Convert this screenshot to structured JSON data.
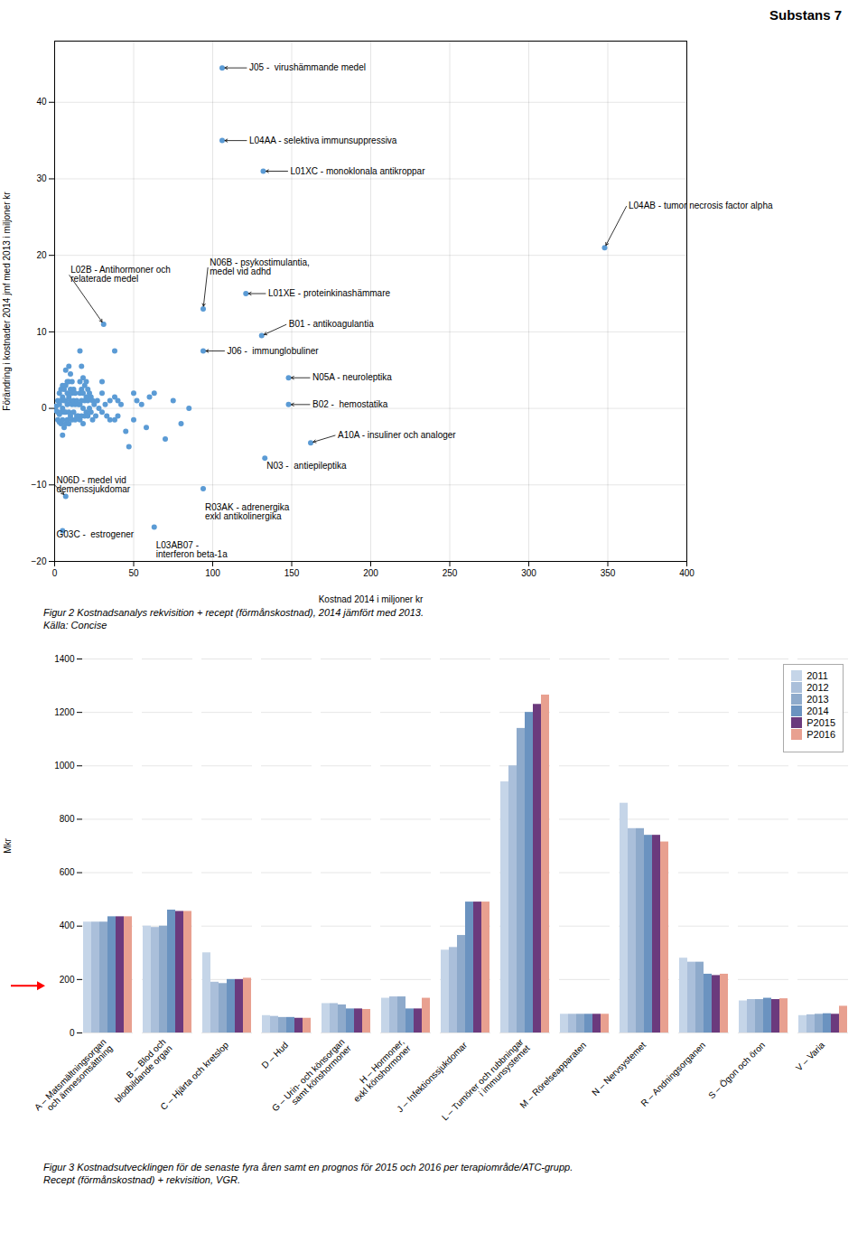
{
  "chart_data": [
    {
      "type": "scatter",
      "title": "Substans 7",
      "xlabel": "Kostnad 2014 i miljoner kr",
      "ylabel": "Förändring i kostnader 2014 jmf med 2013 i miljoner kr",
      "caption": [
        "Figur 2 Kostnadsanalys rekvisition + recept (förmånskostnad), 2014 jämfört med 2013.",
        "Källa: Concise"
      ],
      "color": "#5b9bd5",
      "xlim": [
        0,
        400
      ],
      "ylim": [
        -20,
        48
      ],
      "xticks": [
        0,
        50,
        100,
        150,
        200,
        250,
        300,
        350,
        400
      ],
      "yticks": [
        -20,
        -10,
        0,
        10,
        20,
        30,
        40
      ],
      "grid": true,
      "x": [
        1,
        1,
        2,
        2,
        2,
        3,
        3,
        3,
        3,
        4,
        4,
        4,
        4,
        5,
        5,
        5,
        5,
        5,
        6,
        6,
        6,
        6,
        7,
        7,
        7,
        7,
        7,
        8,
        8,
        8,
        8,
        9,
        9,
        9,
        9,
        9,
        10,
        10,
        10,
        10,
        11,
        11,
        11,
        11,
        12,
        12,
        12,
        13,
        13,
        13,
        14,
        14,
        15,
        15,
        16,
        16,
        16,
        16,
        16,
        17,
        17,
        17,
        17,
        18,
        18,
        18,
        18,
        19,
        19,
        19,
        20,
        20,
        20,
        21,
        21,
        21,
        22,
        22,
        23,
        23,
        24,
        24,
        25,
        26,
        27,
        28,
        30,
        30,
        30,
        32,
        33,
        35,
        35,
        38,
        38,
        38,
        40,
        40,
        42,
        45,
        47,
        50,
        50,
        52,
        55,
        58,
        60,
        63,
        70,
        75,
        80,
        85,
        106,
        106,
        132,
        348,
        94,
        121,
        131,
        94,
        148,
        148,
        162,
        133,
        31,
        94,
        7,
        5,
        63
      ],
      "values": [
        0.3,
        -0.3,
        1,
        -0.5,
        -1.5,
        2,
        0.5,
        -0.8,
        -1.8,
        2.5,
        1,
        -0.5,
        -2,
        3,
        1.5,
        0,
        -1.5,
        -3.5,
        2.5,
        1,
        -0.5,
        -2.5,
        5,
        3,
        1,
        -0.5,
        -2,
        3.5,
        2,
        0.5,
        -1.5,
        5.5,
        3.5,
        1.5,
        -0.5,
        -2,
        4.5,
        2.5,
        1,
        -1,
        3.5,
        2,
        0.5,
        -1.5,
        2.5,
        1,
        -0.5,
        2,
        0.5,
        -1.5,
        1,
        -1,
        0.5,
        -1,
        7.5,
        3.5,
        2,
        0.5,
        -1.5,
        5.5,
        2.5,
        1,
        -1,
        4,
        2,
        0,
        -2,
        3,
        1,
        -1,
        3.5,
        1.5,
        -0.5,
        2.5,
        1,
        -1,
        2,
        0,
        1.5,
        -0.5,
        1,
        -1.5,
        0.5,
        -1,
        1,
        0,
        3.5,
        2,
        -0.5,
        0.5,
        -1,
        1,
        -1.5,
        7.5,
        1.5,
        -1.5,
        1,
        -1,
        0.5,
        -3,
        -5,
        2,
        -1.5,
        1,
        0.5,
        -2.5,
        1.5,
        2,
        -4,
        1,
        -2,
        0,
        44.5,
        35,
        31,
        21,
        13,
        15,
        9.5,
        7.5,
        4,
        0.5,
        -4.5,
        -6.5,
        11,
        -10.5,
        -11.5,
        -16,
        -15.5
      ],
      "annotations": [
        {
          "text": "J05 -  virushämmande medel",
          "x": 106,
          "y": 44.5,
          "label_x": 122,
          "label_y": 44.5,
          "arrow": true
        },
        {
          "text": "L04AA - selektiva immunsuppressiva",
          "x": 106,
          "y": 35,
          "label_x": 122,
          "label_y": 35,
          "arrow": true
        },
        {
          "text": "L01XC - monoklonala antikroppar",
          "x": 132,
          "y": 31,
          "label_x": 148,
          "label_y": 31,
          "arrow": true
        },
        {
          "text": "L04AB - tumor necrosis factor alpha",
          "x": 348,
          "y": 21,
          "label_x": 362,
          "label_y": 26.5,
          "arrow": true
        },
        {
          "text": "N06B - psykostimulantia,\nmedel vid adhd",
          "x": 94,
          "y": 13,
          "label_x": 97,
          "label_y": 18.5,
          "arrow": true
        },
        {
          "text": "L01XE - proteinkinashämmare",
          "x": 121,
          "y": 15,
          "label_x": 134,
          "label_y": 15,
          "arrow": true
        },
        {
          "text": "B01 - antikoagulantia",
          "x": 131,
          "y": 9.5,
          "label_x": 147,
          "label_y": 11,
          "arrow": true
        },
        {
          "text": "J06 -  immunglobuliner",
          "x": 94,
          "y": 7.5,
          "label_x": 108,
          "label_y": 7.5,
          "arrow": true
        },
        {
          "text": "N05A - neuroleptika",
          "x": 148,
          "y": 4,
          "label_x": 162,
          "label_y": 4,
          "arrow": true
        },
        {
          "text": "B02 -  hemostatika",
          "x": 148,
          "y": 0.5,
          "label_x": 162,
          "label_y": 0.5,
          "arrow": true
        },
        {
          "text": "A10A - insuliner och analoger",
          "x": 162,
          "y": -4.5,
          "label_x": 178,
          "label_y": -3.5,
          "arrow": true
        },
        {
          "text": "N03 -  antiepileptika",
          "x": 133,
          "y": -6.5,
          "label_x": 133,
          "label_y": -7.5,
          "arrow": false
        },
        {
          "text": "L02B - Antihormoner och\nrelaterade medel",
          "x": 31,
          "y": 11,
          "label_x": 9,
          "label_y": 17.5,
          "arrow": true
        },
        {
          "text": "R03AK - adrenergika\nexkl antikolinergika",
          "x": 94,
          "y": -10.5,
          "label_x": 94,
          "label_y": -13.5,
          "arrow": false
        },
        {
          "text": "N06D - medel vid\ndemenssjukdomar",
          "x": 7,
          "y": -11.5,
          "label_x": 0,
          "label_y": -10,
          "arrow": true
        },
        {
          "text": "G03C -  estrogener",
          "x": 5,
          "y": -16,
          "label_x": 0,
          "label_y": -16.5,
          "arrow": false
        },
        {
          "text": "L03AB07 -\ninterferon beta-1a",
          "x": 63,
          "y": -15.5,
          "label_x": 63,
          "label_y": -18.5,
          "arrow": false
        }
      ]
    },
    {
      "type": "bar",
      "ylabel": "Mkr",
      "caption": [
        "Figur 3 Kostnadsutvecklingen för de senaste fyra åren samt en prognos för 2015 och 2016 per terapiområde/ATC-grupp.",
        "Recept (förmånskostnad) + rekvisition, VGR."
      ],
      "ylim": [
        0,
        1400
      ],
      "yticks": [
        0,
        200,
        400,
        600,
        800,
        1000,
        1200,
        1400
      ],
      "grid": true,
      "legend": "upper right",
      "categories": [
        "A – Matsmältningsorgan\noch ämnesomsättning",
        "B – Blod och\nblodbildande organ",
        "C – Hjärta och kretslop",
        "D – Hud",
        "G – Urin- och könsorgan\nsamt könshormoner",
        "H – Hormoner,\nexkl könshormoner",
        "J – Infektionssjukdomar",
        "L – Tumörer och rubbningar\ni immunsystemet",
        "M – Rörelseapparaten",
        "N – Nervsystemet",
        "R – Andningsorganen",
        "S – Ögon och öron",
        "V – Varia"
      ],
      "series": [
        {
          "name": "2011",
          "color": "#c5d5e8",
          "values": [
            415,
            400,
            300,
            65,
            110,
            130,
            310,
            940,
            70,
            860,
            280,
            120,
            65
          ]
        },
        {
          "name": "2012",
          "color": "#aabfda",
          "values": [
            415,
            395,
            190,
            62,
            110,
            135,
            320,
            1000,
            70,
            765,
            265,
            125,
            68
          ]
        },
        {
          "name": "2013",
          "color": "#8eaacb",
          "values": [
            415,
            400,
            185,
            58,
            105,
            135,
            365,
            1140,
            70,
            765,
            265,
            125,
            70
          ]
        },
        {
          "name": "2014",
          "color": "#6b93c0",
          "values": [
            435,
            460,
            200,
            58,
            90,
            90,
            490,
            1200,
            70,
            740,
            220,
            130,
            72
          ]
        },
        {
          "name": "P2015",
          "color": "#6b3a7d",
          "values": [
            435,
            455,
            200,
            55,
            90,
            90,
            490,
            1230,
            70,
            740,
            215,
            125,
            70
          ]
        },
        {
          "name": "P2016",
          "color": "#e8a090",
          "values": [
            435,
            455,
            205,
            55,
            88,
            130,
            490,
            1265,
            70,
            715,
            220,
            128,
            100
          ]
        }
      ],
      "annotations": [
        {
          "y": 175,
          "arrow": true,
          "color": "red"
        }
      ]
    }
  ]
}
